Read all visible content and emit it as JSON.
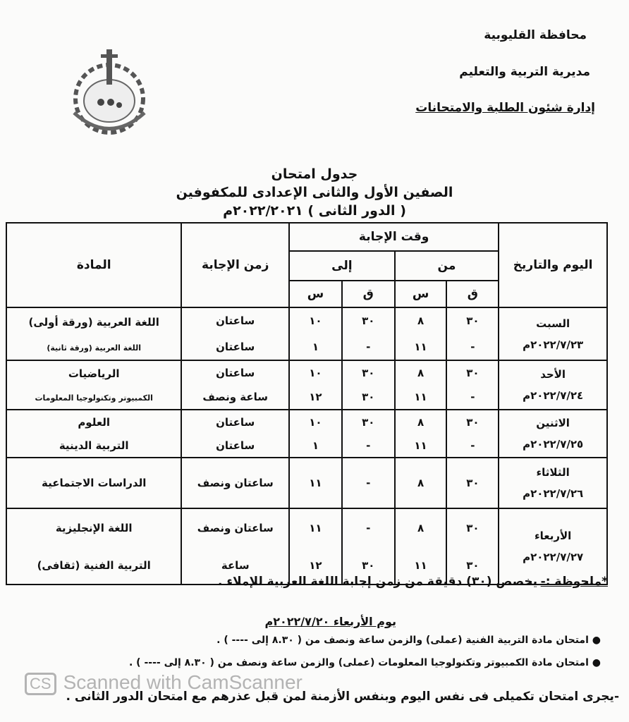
{
  "header": {
    "line1": "محافظة القليوبية",
    "line2": "مديرية التربية والتعليم",
    "line3": "إدارة شئون الطلبة والامتحانات"
  },
  "title": {
    "line1": "جدول امتحان",
    "line2": "الصفين الأول والثانى الإعدادى للمكفوفين",
    "line3": "( الدور الثانى ) ٢٠٢٢/٢٠٢١م"
  },
  "table": {
    "headers": {
      "day": "اليوم والتاريخ",
      "answer_time": "وقت الإجابة",
      "from": "من",
      "to": "إلى",
      "minute": "ق",
      "hour": "س",
      "duration": "زمن الإجابة",
      "subject": "المادة"
    },
    "rows": [
      {
        "day": "السبت",
        "date": "٢٠٢٢/٧/٢٣م",
        "lines": [
          [
            "٣٠",
            "٨",
            "٣٠",
            "١٠",
            "ساعتان",
            "اللغة العربية (ورقة أولى)"
          ],
          [
            "-",
            "١١",
            "-",
            "١",
            "ساعتان",
            "اللغة العربية (ورقة ثانية)"
          ]
        ]
      },
      {
        "day": "الأحد",
        "date": "٢٠٢٢/٧/٢٤م",
        "lines": [
          [
            "٣٠",
            "٨",
            "٣٠",
            "١٠",
            "ساعتان",
            "الرياضيات"
          ],
          [
            "-",
            "١١",
            "٣٠",
            "١٢",
            "ساعة ونصف",
            "الكمبيوتر وتكنولوجيا المعلومات"
          ]
        ]
      },
      {
        "day": "الاثنين",
        "date": "٢٠٢٢/٧/٢٥م",
        "lines": [
          [
            "٣٠",
            "٨",
            "٣٠",
            "١٠",
            "ساعتان",
            "العلوم"
          ],
          [
            "-",
            "١١",
            "-",
            "١",
            "ساعتان",
            "التربية الدينية"
          ]
        ]
      },
      {
        "day": "الثلاثاء",
        "date": "٢٠٢٢/٧/٢٦م",
        "lines": [
          [
            "٣٠",
            "٨",
            "-",
            "١١",
            "ساعتان ونصف",
            "الدراسات الاجتماعية"
          ]
        ]
      },
      {
        "day": "الأربعاء",
        "date": "٢٠٢٢/٧/٢٧م",
        "lines": [
          [
            "٣٠",
            "٨",
            "-",
            "١١",
            "ساعتان ونصف",
            "اللغة الإنجليزية"
          ],
          [
            "٣٠",
            "١١",
            "٣٠",
            "١٢",
            "ساعة",
            "التربية الفنية (ثقافى)"
          ]
        ]
      }
    ]
  },
  "notes": {
    "label": "*ملحوظة :-",
    "text": "يخصص (٣٠) دقيقة من زمن إجابة اللغة العربية للإملاء .",
    "day_heading": "يوم الأربعاء ٢٠٢٢/٧/٢٠م",
    "bullets": [
      "امتحان مادة التربية الفنية (عملى) والزمن ساعة ونصف من ( ٨.٣٠ إلى ---- ) .",
      "امتحان مادة الكمبيوتر وتكنولوجيا المعلومات (عملى) والزمن ساعة ونصف من ( ٨.٣٠ إلى ---- ) ."
    ],
    "final": "-يجرى امتحان تكميلى فى نفس اليوم وبنفس الأزمنة لمن قبل عذرهم مع امتحان الدور الثانى ."
  },
  "watermark": {
    "badge": "CS",
    "text": "Scanned with CamScanner"
  }
}
